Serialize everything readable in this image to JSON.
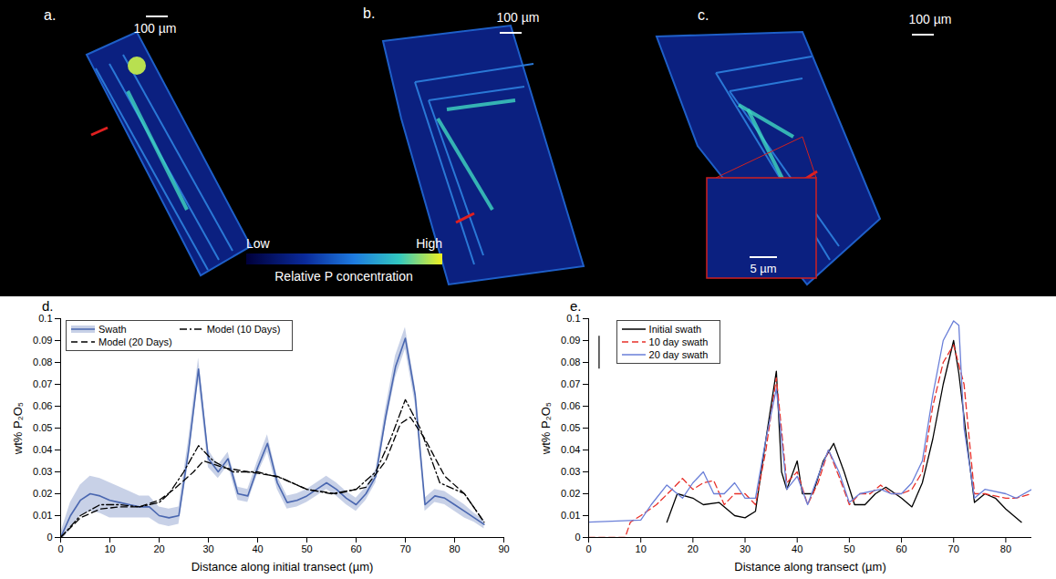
{
  "images": {
    "panels": [
      {
        "label": "a.",
        "scale_bar": "100 µm"
      },
      {
        "label": "b.",
        "scale_bar": "100 µm"
      },
      {
        "label": "c.",
        "scale_bar": "100 µm",
        "inset_scale_bar": "5 µm"
      }
    ],
    "colorbar": {
      "low": "Low",
      "high": "High",
      "label": "Relative P concentration"
    }
  },
  "chart_data": [
    {
      "panel": "d.",
      "type": "line",
      "xlabel": "Distance along initial transect (µm)",
      "ylabel": "wt% P₂O₅",
      "xlim": [
        0,
        90
      ],
      "xticks": [
        0,
        10,
        20,
        30,
        40,
        50,
        60,
        70,
        80,
        90
      ],
      "ylim": [
        0,
        0.1
      ],
      "yticks": [
        0,
        0.01,
        0.02,
        0.03,
        0.04,
        0.05,
        0.06,
        0.07,
        0.08,
        0.09,
        0.1
      ],
      "legend": "upper left",
      "series": [
        {
          "name": "Swath",
          "color": "#4a67b0",
          "line_style": "solid",
          "x": [
            0,
            2,
            4,
            6,
            8,
            10,
            12,
            14,
            16,
            18,
            20,
            22,
            24,
            26,
            28,
            30,
            32,
            34,
            36,
            38,
            40,
            42,
            44,
            46,
            48,
            50,
            52,
            54,
            56,
            58,
            60,
            62,
            64,
            66,
            68,
            70,
            72,
            74,
            76,
            78,
            80,
            82,
            84,
            86
          ],
          "values": [
            0,
            0.01,
            0.017,
            0.02,
            0.019,
            0.017,
            0.016,
            0.015,
            0.014,
            0.014,
            0.01,
            0.009,
            0.01,
            0.04,
            0.077,
            0.036,
            0.03,
            0.036,
            0.02,
            0.019,
            0.032,
            0.043,
            0.025,
            0.016,
            0.017,
            0.019,
            0.022,
            0.025,
            0.022,
            0.018,
            0.015,
            0.02,
            0.028,
            0.055,
            0.078,
            0.091,
            0.065,
            0.015,
            0.019,
            0.018,
            0.015,
            0.012,
            0.009,
            0.006
          ],
          "error": [
            0.002,
            0.006,
            0.007,
            0.008,
            0.008,
            0.008,
            0.007,
            0.006,
            0.005,
            0.005,
            0.004,
            0.004,
            0.004,
            0.005,
            0.005,
            0.004,
            0.003,
            0.003,
            0.003,
            0.003,
            0.003,
            0.004,
            0.003,
            0.003,
            0.003,
            0.003,
            0.003,
            0.003,
            0.003,
            0.003,
            0.003,
            0.003,
            0.003,
            0.004,
            0.005,
            0.005,
            0.004,
            0.003,
            0.003,
            0.003,
            0.003,
            0.003,
            0.002,
            0.002
          ]
        },
        {
          "name": "Model (10 Days)",
          "color": "#000000",
          "line_style": "dashdot",
          "x": [
            0,
            4,
            8,
            12,
            16,
            20,
            22,
            25,
            28,
            31,
            35,
            40,
            45,
            50,
            55,
            60,
            64,
            67,
            70,
            73,
            77,
            82,
            86
          ],
          "values": [
            0,
            0.01,
            0.015,
            0.015,
            0.014,
            0.016,
            0.02,
            0.03,
            0.042,
            0.035,
            0.03,
            0.03,
            0.027,
            0.022,
            0.02,
            0.022,
            0.03,
            0.045,
            0.063,
            0.05,
            0.025,
            0.02,
            0.007
          ]
        },
        {
          "name": "Model (20 Days)",
          "color": "#000000",
          "line_style": "dashed",
          "x": [
            0,
            4,
            8,
            12,
            16,
            20,
            23,
            27,
            29,
            33,
            38,
            44,
            50,
            56,
            62,
            66,
            69,
            71,
            74,
            78,
            82,
            86
          ],
          "values": [
            0,
            0.009,
            0.013,
            0.014,
            0.014,
            0.017,
            0.022,
            0.03,
            0.035,
            0.032,
            0.03,
            0.028,
            0.022,
            0.02,
            0.023,
            0.035,
            0.052,
            0.055,
            0.045,
            0.028,
            0.02,
            0.007
          ]
        }
      ]
    },
    {
      "panel": "e.",
      "type": "line",
      "xlabel": "Distance along transect (µm)",
      "ylabel": "wt% P₂O₅",
      "xlim": [
        0,
        85
      ],
      "xticks": [
        0,
        10,
        20,
        30,
        40,
        50,
        60,
        70,
        80
      ],
      "ylim": [
        0,
        0.1
      ],
      "yticks": [
        0,
        0.01,
        0.02,
        0.03,
        0.04,
        0.05,
        0.06,
        0.07,
        0.08,
        0.09,
        0.1
      ],
      "legend": "upper left",
      "error_bar": {
        "x": 2,
        "low": 0.077,
        "high": 0.092
      },
      "series": [
        {
          "name": "Initial swath",
          "color": "#000000",
          "line_style": "solid",
          "x": [
            15,
            17,
            20,
            22,
            25,
            28,
            30,
            32,
            34,
            36,
            37,
            38,
            40,
            41,
            43,
            45,
            47,
            49,
            51,
            53,
            55,
            57,
            60,
            62,
            64,
            66,
            68,
            70,
            71,
            73,
            74,
            76,
            78,
            80,
            83
          ],
          "values": [
            0.007,
            0.02,
            0.018,
            0.015,
            0.016,
            0.01,
            0.009,
            0.012,
            0.045,
            0.076,
            0.03,
            0.022,
            0.035,
            0.02,
            0.02,
            0.035,
            0.043,
            0.03,
            0.015,
            0.015,
            0.02,
            0.023,
            0.018,
            0.014,
            0.025,
            0.045,
            0.07,
            0.09,
            0.075,
            0.035,
            0.016,
            0.02,
            0.018,
            0.013,
            0.007
          ]
        },
        {
          "name": "10 day swath",
          "color": "#e8302a",
          "line_style": "dashed",
          "x": [
            0,
            7,
            8,
            10,
            13,
            16,
            18,
            20,
            22,
            24,
            26,
            28,
            30,
            32,
            34,
            36,
            38,
            40,
            42,
            44,
            46,
            48,
            50,
            52,
            54,
            56,
            58,
            60,
            62,
            64,
            66,
            68,
            70,
            72,
            74,
            76,
            80,
            82,
            85
          ],
          "values": [
            0,
            0,
            0.007,
            0.01,
            0.015,
            0.022,
            0.027,
            0.022,
            0.025,
            0.026,
            0.015,
            0.02,
            0.02,
            0.015,
            0.04,
            0.073,
            0.025,
            0.03,
            0.015,
            0.025,
            0.04,
            0.028,
            0.015,
            0.02,
            0.02,
            0.024,
            0.02,
            0.02,
            0.022,
            0.03,
            0.06,
            0.08,
            0.088,
            0.07,
            0.02,
            0.02,
            0.018,
            0.018,
            0.02
          ]
        },
        {
          "name": "20 day swath",
          "color": "#6a7fd8",
          "line_style": "solid",
          "x": [
            0,
            10,
            12,
            15,
            18,
            20,
            22,
            24,
            26,
            28,
            30,
            32,
            34,
            36,
            38,
            40,
            42,
            44,
            46,
            48,
            50,
            52,
            56,
            58,
            60,
            62,
            64,
            66,
            68,
            70,
            71,
            72,
            74,
            76,
            80,
            82,
            85
          ],
          "values": [
            0.007,
            0.008,
            0.015,
            0.024,
            0.018,
            0.025,
            0.03,
            0.02,
            0.02,
            0.025,
            0.018,
            0.018,
            0.045,
            0.068,
            0.022,
            0.028,
            0.015,
            0.028,
            0.04,
            0.03,
            0.016,
            0.02,
            0.022,
            0.02,
            0.02,
            0.025,
            0.035,
            0.065,
            0.09,
            0.099,
            0.097,
            0.05,
            0.018,
            0.022,
            0.02,
            0.018,
            0.022
          ]
        }
      ]
    }
  ]
}
